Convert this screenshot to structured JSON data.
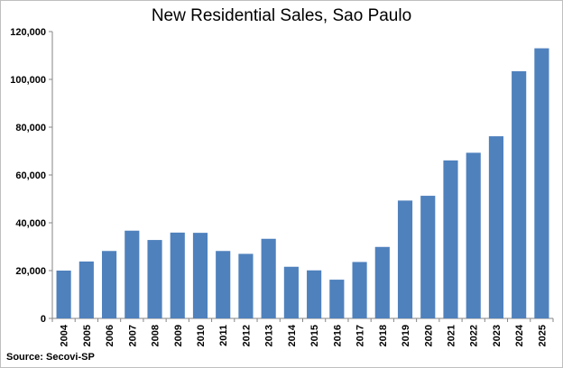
{
  "chart_data": {
    "type": "bar",
    "title": "New Residential Sales, Sao Paulo",
    "source": "Source: Secovi-SP",
    "categories": [
      "2004",
      "2005",
      "2006",
      "2007",
      "2008",
      "2009",
      "2010",
      "2011",
      "2012",
      "2013",
      "2014",
      "2015",
      "2016",
      "2017",
      "2018",
      "2019",
      "2020",
      "2021",
      "2022",
      "2023",
      "2024",
      "2025"
    ],
    "values": [
      20000,
      23800,
      28200,
      36700,
      32800,
      35900,
      35800,
      28200,
      27000,
      33300,
      21600,
      20100,
      16200,
      23600,
      29900,
      49300,
      51300,
      66100,
      69300,
      76200,
      103400,
      113000
    ],
    "ylim": [
      0,
      120000
    ],
    "yticks": [
      0,
      20000,
      40000,
      60000,
      80000,
      100000,
      120000
    ],
    "ytick_labels": [
      "0",
      "20,000",
      "40,000",
      "60,000",
      "80,000",
      "100,000",
      "120,000"
    ],
    "bar_color": "#4f81bd",
    "grid": false,
    "legend": "none"
  }
}
